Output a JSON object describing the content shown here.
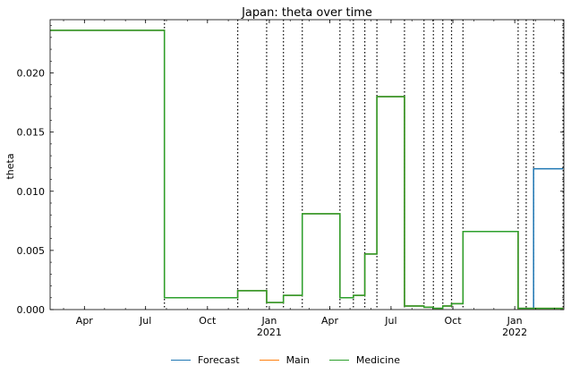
{
  "chart_data": {
    "type": "line",
    "title": "Japan: theta over time",
    "ylabel": "theta",
    "xlabel": "",
    "ylim": [
      0,
      0.0245
    ],
    "yticks": [
      0.0,
      0.005,
      0.01,
      0.015,
      0.02
    ],
    "ytick_labels": [
      "0.000",
      "0.005",
      "0.010",
      "0.015",
      "0.020"
    ],
    "xlim": [
      "2020-02-10",
      "2022-03-15"
    ],
    "xticks": [
      {
        "date": "2020-04-01",
        "label": "Apr",
        "sub": ""
      },
      {
        "date": "2020-07-01",
        "label": "Jul",
        "sub": ""
      },
      {
        "date": "2020-10-01",
        "label": "Oct",
        "sub": ""
      },
      {
        "date": "2021-01-01",
        "label": "Jan",
        "sub": "2021"
      },
      {
        "date": "2021-04-01",
        "label": "Apr",
        "sub": ""
      },
      {
        "date": "2021-07-01",
        "label": "Jul",
        "sub": ""
      },
      {
        "date": "2021-10-01",
        "label": "Oct",
        "sub": ""
      },
      {
        "date": "2022-01-01",
        "label": "Jan",
        "sub": "2022"
      }
    ],
    "grid": false,
    "legend_position": "bottom-center",
    "change_points": [
      "2020-07-29",
      "2020-11-15",
      "2020-12-28",
      "2021-01-22",
      "2021-02-19",
      "2021-04-16",
      "2021-05-06",
      "2021-05-23",
      "2021-06-10",
      "2021-07-21",
      "2021-08-19",
      "2021-09-02",
      "2021-09-16",
      "2021-09-29",
      "2021-10-16",
      "2022-01-06",
      "2022-01-18",
      "2022-01-29",
      "2022-03-14"
    ],
    "series": [
      {
        "name": "Forecast",
        "color": "#1f77b4",
        "points": [
          [
            "2020-02-10",
            0.0236
          ],
          [
            "2020-07-29",
            0.0236
          ],
          [
            "2020-07-29",
            0.001
          ],
          [
            "2020-11-15",
            0.001
          ],
          [
            "2020-11-15",
            0.0016
          ],
          [
            "2020-12-28",
            0.0016
          ],
          [
            "2020-12-28",
            0.0006
          ],
          [
            "2021-01-22",
            0.0006
          ],
          [
            "2021-01-22",
            0.0012
          ],
          [
            "2021-02-19",
            0.0012
          ],
          [
            "2021-02-19",
            0.0081
          ],
          [
            "2021-04-16",
            0.0081
          ],
          [
            "2021-04-16",
            0.001
          ],
          [
            "2021-05-06",
            0.001
          ],
          [
            "2021-05-06",
            0.0012
          ],
          [
            "2021-05-23",
            0.0012
          ],
          [
            "2021-05-23",
            0.0047
          ],
          [
            "2021-06-10",
            0.0047
          ],
          [
            "2021-06-10",
            0.018
          ],
          [
            "2021-07-21",
            0.018
          ],
          [
            "2021-07-21",
            0.0003
          ],
          [
            "2021-08-19",
            0.0003
          ],
          [
            "2021-08-19",
            0.0002
          ],
          [
            "2021-09-02",
            0.0002
          ],
          [
            "2021-09-02",
            0.0001
          ],
          [
            "2021-09-16",
            0.0001
          ],
          [
            "2021-09-16",
            0.0003
          ],
          [
            "2021-09-29",
            0.0003
          ],
          [
            "2021-09-29",
            0.0005
          ],
          [
            "2021-10-16",
            0.0005
          ],
          [
            "2021-10-16",
            0.0066
          ],
          [
            "2022-01-06",
            0.0066
          ],
          [
            "2022-01-06",
            0.0001
          ],
          [
            "2022-01-29",
            0.0001
          ],
          [
            "2022-01-29",
            0.0119
          ],
          [
            "2022-03-14",
            0.0119
          ]
        ]
      },
      {
        "name": "Main",
        "color": "#ff7f0e",
        "points": [
          [
            "2020-02-10",
            0.0236
          ],
          [
            "2020-07-29",
            0.0236
          ],
          [
            "2020-07-29",
            0.001
          ],
          [
            "2020-11-15",
            0.001
          ],
          [
            "2020-11-15",
            0.0016
          ],
          [
            "2020-12-28",
            0.0016
          ],
          [
            "2020-12-28",
            0.0006
          ],
          [
            "2021-01-22",
            0.0006
          ],
          [
            "2021-01-22",
            0.0012
          ],
          [
            "2021-02-19",
            0.0012
          ],
          [
            "2021-02-19",
            0.0081
          ],
          [
            "2021-04-16",
            0.0081
          ],
          [
            "2021-04-16",
            0.001
          ],
          [
            "2021-05-06",
            0.001
          ],
          [
            "2021-05-06",
            0.0012
          ],
          [
            "2021-05-23",
            0.0012
          ],
          [
            "2021-05-23",
            0.0047
          ],
          [
            "2021-06-10",
            0.0047
          ],
          [
            "2021-06-10",
            0.018
          ],
          [
            "2021-07-21",
            0.018
          ],
          [
            "2021-07-21",
            0.0003
          ],
          [
            "2021-08-19",
            0.0003
          ],
          [
            "2021-08-19",
            0.0002
          ],
          [
            "2021-09-02",
            0.0002
          ],
          [
            "2021-09-02",
            0.0001
          ],
          [
            "2021-09-16",
            0.0001
          ],
          [
            "2021-09-16",
            0.0003
          ],
          [
            "2021-09-29",
            0.0003
          ],
          [
            "2021-09-29",
            0.0005
          ],
          [
            "2021-10-16",
            0.0005
          ],
          [
            "2021-10-16",
            0.0066
          ],
          [
            "2022-01-06",
            0.0066
          ],
          [
            "2022-01-06",
            0.0001
          ],
          [
            "2022-03-14",
            0.0001
          ]
        ]
      },
      {
        "name": "Medicine",
        "color": "#2ca02c",
        "points": [
          [
            "2020-02-10",
            0.0236
          ],
          [
            "2020-07-29",
            0.0236
          ],
          [
            "2020-07-29",
            0.001
          ],
          [
            "2020-11-15",
            0.001
          ],
          [
            "2020-11-15",
            0.0016
          ],
          [
            "2020-12-28",
            0.0016
          ],
          [
            "2020-12-28",
            0.0006
          ],
          [
            "2021-01-22",
            0.0006
          ],
          [
            "2021-01-22",
            0.0012
          ],
          [
            "2021-02-19",
            0.0012
          ],
          [
            "2021-02-19",
            0.0081
          ],
          [
            "2021-04-16",
            0.0081
          ],
          [
            "2021-04-16",
            0.001
          ],
          [
            "2021-05-06",
            0.001
          ],
          [
            "2021-05-06",
            0.0012
          ],
          [
            "2021-05-23",
            0.0012
          ],
          [
            "2021-05-23",
            0.0047
          ],
          [
            "2021-06-10",
            0.0047
          ],
          [
            "2021-06-10",
            0.018
          ],
          [
            "2021-07-21",
            0.018
          ],
          [
            "2021-07-21",
            0.0003
          ],
          [
            "2021-08-19",
            0.0003
          ],
          [
            "2021-08-19",
            0.0002
          ],
          [
            "2021-09-02",
            0.0002
          ],
          [
            "2021-09-02",
            0.0001
          ],
          [
            "2021-09-16",
            0.0001
          ],
          [
            "2021-09-16",
            0.0003
          ],
          [
            "2021-09-29",
            0.0003
          ],
          [
            "2021-09-29",
            0.0005
          ],
          [
            "2021-10-16",
            0.0005
          ],
          [
            "2021-10-16",
            0.0066
          ],
          [
            "2022-01-06",
            0.0066
          ],
          [
            "2022-01-06",
            0.0001
          ],
          [
            "2022-03-14",
            0.0001
          ]
        ]
      }
    ]
  }
}
